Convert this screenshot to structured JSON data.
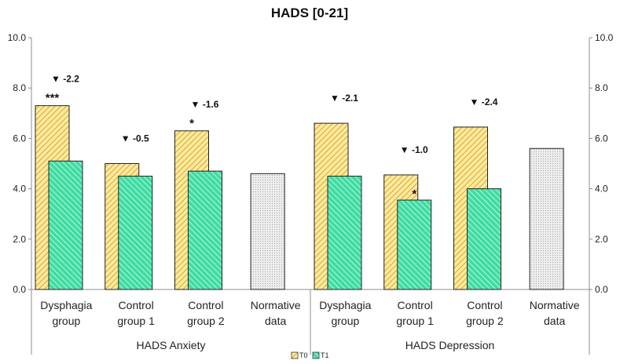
{
  "chart_data": {
    "type": "bar",
    "title": "HADS  [0-21]",
    "ylim": [
      0,
      10
    ],
    "yticks": [
      "0.0",
      "2.0",
      "4.0",
      "6.0",
      "8.0",
      "10.0"
    ],
    "groups": [
      {
        "name": "HADS Anxiety",
        "categories": [
          {
            "label": [
              "Dysphagia",
              "group"
            ],
            "t0": 7.3,
            "t1": 5.1,
            "delta": "-2.2",
            "t0_sig": "***",
            "t1_sig": ""
          },
          {
            "label": [
              "Control",
              "group 1"
            ],
            "t0": 5.0,
            "t1": 4.5,
            "delta": "-0.5",
            "t0_sig": "",
            "t1_sig": ""
          },
          {
            "label": [
              "Control",
              "group 2"
            ],
            "t0": 6.3,
            "t1": 4.7,
            "delta": "-1.6",
            "t0_sig": "*",
            "t1_sig": ""
          },
          {
            "label": [
              "Normative",
              "data"
            ],
            "normative": 4.6
          }
        ]
      },
      {
        "name": "HADS Depression",
        "categories": [
          {
            "label": [
              "Dysphagia",
              "group"
            ],
            "t0": 6.6,
            "t1": 4.5,
            "delta": "-2.1",
            "t0_sig": "",
            "t1_sig": ""
          },
          {
            "label": [
              "Control",
              "group 1"
            ],
            "t0": 4.55,
            "t1": 3.55,
            "delta": "-1.0",
            "t0_sig": "",
            "t1_sig": "*"
          },
          {
            "label": [
              "Control",
              "group 2"
            ],
            "t0": 6.45,
            "t1": 4.0,
            "delta": "-2.4",
            "t0_sig": "",
            "t1_sig": ""
          },
          {
            "label": [
              "Normative",
              "data"
            ],
            "normative": 5.6
          }
        ]
      }
    ],
    "legend": [
      {
        "name": "T0",
        "color": "#ffe38c"
      },
      {
        "name": "T1",
        "color": "#35d69b"
      }
    ],
    "triangle": "▼"
  }
}
